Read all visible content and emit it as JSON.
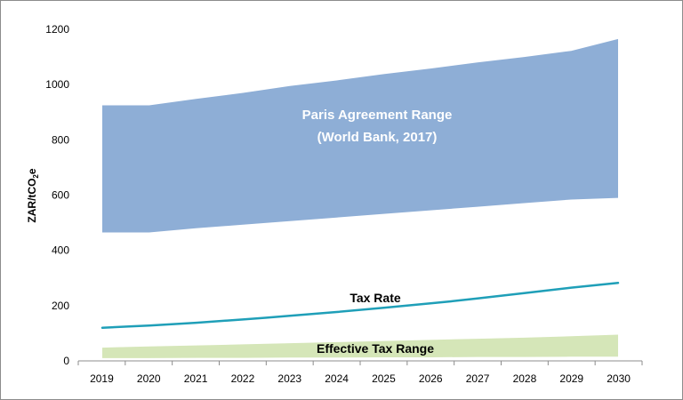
{
  "chart_data": {
    "type": "area",
    "title": "",
    "xlabel": "",
    "ylabel_main": "ZAR/tCO",
    "ylabel_sub": "2",
    "ylabel_suffix": "e",
    "x": [
      "2019",
      "2020",
      "2021",
      "2022",
      "2023",
      "2024",
      "2025",
      "2026",
      "2027",
      "2028",
      "2029",
      "2030"
    ],
    "ylim": [
      0,
      1200
    ],
    "yticks": [
      "0",
      "200",
      "400",
      "600",
      "800",
      "1000",
      "1200"
    ],
    "series": [
      {
        "name": "Paris Agreement Range",
        "kind": "band",
        "color": "#8eaed6",
        "lower": [
          465,
          465,
          480,
          493,
          506,
          519,
          532,
          545,
          558,
          571,
          584,
          590
        ],
        "upper": [
          925,
          925,
          948,
          970,
          995,
          1015,
          1038,
          1058,
          1080,
          1100,
          1122,
          1165
        ]
      },
      {
        "name": "Tax Rate",
        "kind": "line",
        "color": "#1f9fb8",
        "values": [
          120,
          128,
          138,
          150,
          163,
          177,
          192,
          208,
          226,
          245,
          265,
          282
        ]
      },
      {
        "name": "Effective Tax Range",
        "kind": "band",
        "color": "#d5e6b8",
        "lower": [
          10,
          10,
          11,
          11,
          12,
          12,
          13,
          13,
          14,
          14,
          15,
          15
        ],
        "upper": [
          48,
          52,
          56,
          60,
          64,
          68,
          72,
          76,
          80,
          84,
          89,
          95
        ]
      }
    ],
    "labels": {
      "paris_line1": "Paris Agreement Range",
      "paris_line2": "(World Bank, 2017)",
      "tax_rate": "Tax Rate",
      "effective": "Effective Tax Range"
    }
  }
}
